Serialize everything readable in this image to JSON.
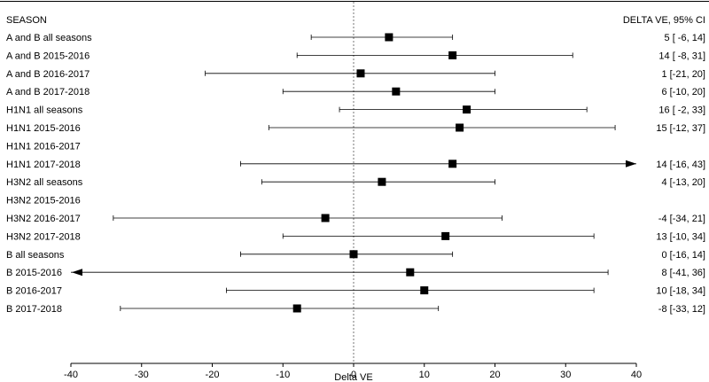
{
  "chart_data": {
    "type": "forest",
    "header_left": "SEASON",
    "header_right": "DELTA VE, 95% CI",
    "xlabel": "Delta VE",
    "xlim": [
      -40,
      40
    ],
    "xticks": [
      -40,
      -30,
      -20,
      -10,
      0,
      10,
      20,
      30,
      40
    ],
    "reference_line": 0,
    "rows": [
      {
        "label": "A and B all seasons",
        "estimate": 5,
        "lower": -6,
        "upper": 14,
        "text": "5 [ -6, 14]"
      },
      {
        "label": "A and B 2015-2016",
        "estimate": 14,
        "lower": -8,
        "upper": 31,
        "text": "14 [ -8, 31]"
      },
      {
        "label": "A and B 2016-2017",
        "estimate": 1,
        "lower": -21,
        "upper": 20,
        "text": "1 [-21, 20]"
      },
      {
        "label": "A and B 2017-2018",
        "estimate": 6,
        "lower": -10,
        "upper": 20,
        "text": "6 [-10, 20]"
      },
      {
        "label": "H1N1 all seasons",
        "estimate": 16,
        "lower": -2,
        "upper": 33,
        "text": "16 [ -2, 33]"
      },
      {
        "label": "H1N1 2015-2016",
        "estimate": 15,
        "lower": -12,
        "upper": 37,
        "text": "15 [-12, 37]"
      },
      {
        "label": "H1N1 2016-2017",
        "estimate": null,
        "lower": null,
        "upper": null,
        "text": ""
      },
      {
        "label": "H1N1 2017-2018",
        "estimate": 14,
        "lower": -16,
        "upper": 43,
        "text": "14 [-16, 43]"
      },
      {
        "label": "H3N2 all seasons",
        "estimate": 4,
        "lower": -13,
        "upper": 20,
        "text": "4 [-13, 20]"
      },
      {
        "label": "H3N2 2015-2016",
        "estimate": null,
        "lower": null,
        "upper": null,
        "text": ""
      },
      {
        "label": "H3N2 2016-2017",
        "estimate": -4,
        "lower": -34,
        "upper": 21,
        "text": "-4 [-34, 21]"
      },
      {
        "label": "H3N2 2017-2018",
        "estimate": 13,
        "lower": -10,
        "upper": 34,
        "text": "13 [-10, 34]"
      },
      {
        "label": "B all seasons",
        "estimate": 0,
        "lower": -16,
        "upper": 14,
        "text": "0 [-16, 14]"
      },
      {
        "label": "B 2015-2016",
        "estimate": 8,
        "lower": -41,
        "upper": 36,
        "text": "8 [-41, 36]"
      },
      {
        "label": "B 2016-2017",
        "estimate": 10,
        "lower": -18,
        "upper": 34,
        "text": "10 [-18, 34]"
      },
      {
        "label": "B 2017-2018",
        "estimate": -8,
        "lower": -33,
        "upper": 12,
        "text": "-8 [-33, 12]"
      }
    ]
  }
}
